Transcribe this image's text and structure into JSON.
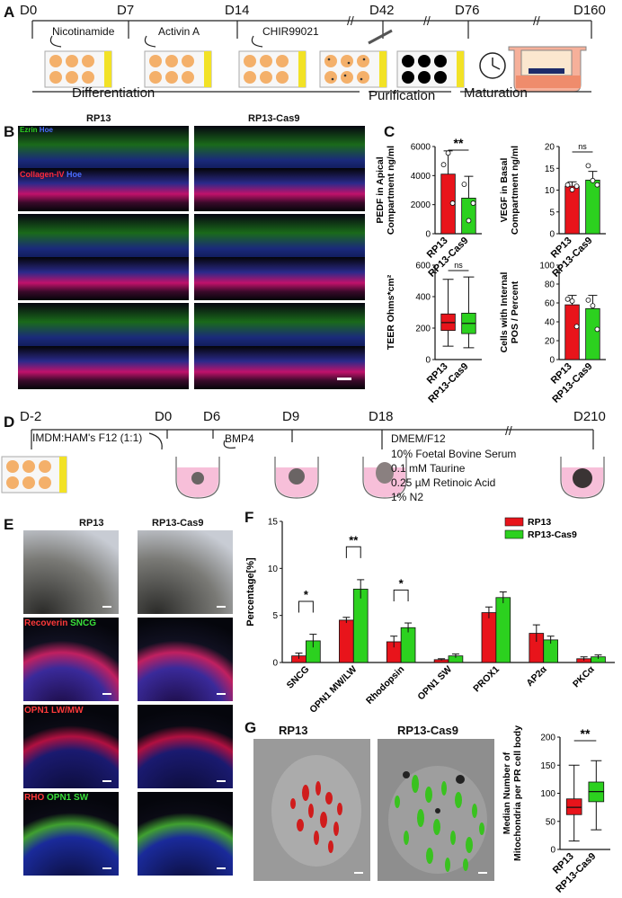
{
  "panelA": {
    "label": "A",
    "days": [
      "D0",
      "D7",
      "D14",
      "D42",
      "D76",
      "D160"
    ],
    "factors": [
      "Nicotinamide",
      "Activin A",
      "CHIR99021"
    ],
    "stages": [
      "Differentiation",
      "Purification",
      "Maturation"
    ]
  },
  "panelB": {
    "label": "B",
    "col1": "RP13",
    "col2": "RP13-Cas9",
    "stain1": {
      "a": "Ezrin",
      "b": "Hoe"
    },
    "stain2": {
      "a": "Collagen-IV",
      "b": "Hoe"
    }
  },
  "panelC": {
    "label": "C"
  },
  "panelD": {
    "label": "D",
    "days": [
      "D-2",
      "D0",
      "D6",
      "D9",
      "D18",
      "D210"
    ],
    "medium1": "IMDM:HAM's F12 (1:1)",
    "factor": "BMP4",
    "medium2": [
      "DMEM/F12",
      "10% Foetal Bovine Serum",
      "0.1 mM Taurine",
      "0.25 µM Retinoic Acid",
      "1% N2"
    ]
  },
  "panelE": {
    "label": "E",
    "col1": "RP13",
    "col2": "RP13-Cas9",
    "stains": [
      {
        "a": "Recoverin",
        "b": "SNCG"
      },
      {
        "a": "OPN1 LW/MW"
      },
      {
        "a": "RHO",
        "b": "OPN1 SW"
      }
    ]
  },
  "panelF": {
    "label": "F"
  },
  "panelG": {
    "label": "G",
    "title1": "RP13",
    "title2": "RP13-Cas9"
  },
  "colors": {
    "rp13": "#e8141b",
    "cas9": "#2cd11f"
  },
  "chart_data": [
    {
      "id": "pedf",
      "type": "bar",
      "ylabel_line1": "PEDF in Apical",
      "ylabel_line2": "Compartment ng/ml",
      "categories": [
        "RP13",
        "RP13-Cas9"
      ],
      "values": [
        4100,
        2450
      ],
      "errors": [
        1600,
        1500
      ],
      "points": [
        [
          4750,
          5550,
          2100
        ],
        [
          3400,
          900,
          2100
        ]
      ],
      "ylim": [
        0,
        6000
      ],
      "ticks": [
        0,
        2000,
        4000,
        6000
      ],
      "sig": "**"
    },
    {
      "id": "vegf",
      "type": "bar",
      "ylabel_line1": "VEGF in Basal",
      "ylabel_line2": "Compartment ng/ml",
      "categories": [
        "RP13",
        "RP13-Cas9"
      ],
      "values": [
        10.9,
        12.3
      ],
      "errors": [
        1.0,
        2.0
      ],
      "points": [
        [
          11.2,
          10.1,
          10.9
        ],
        [
          15.6,
          12.2,
          11.2
        ]
      ],
      "ylim": [
        0,
        20
      ],
      "ticks": [
        0,
        5,
        10,
        15,
        20
      ],
      "sig": "ns"
    },
    {
      "id": "teer",
      "type": "box",
      "ylabel_line1": "TEER Ohms*cm²",
      "categories": [
        "RP13",
        "RP13-Cas9"
      ],
      "boxes": [
        {
          "min": 85,
          "q1": 185,
          "median": 235,
          "q3": 290,
          "max": 510
        },
        {
          "min": 75,
          "q1": 165,
          "median": 230,
          "q3": 295,
          "max": 525
        }
      ],
      "ylim": [
        0,
        600
      ],
      "ticks": [
        0,
        200,
        400,
        600
      ],
      "sig": "ns"
    },
    {
      "id": "pos",
      "type": "bar",
      "ylabel_line1": "Cells with Internal",
      "ylabel_line2": "POS / Percent",
      "categories": [
        "RP13",
        "RP13-Cas9"
      ],
      "values": [
        58,
        54
      ],
      "errors": [
        10,
        14
      ],
      "points": [
        [
          64,
          62,
          35
        ],
        [
          63,
          57,
          32
        ]
      ],
      "ylim": [
        0,
        100
      ],
      "ticks": [
        0,
        20,
        40,
        60,
        80,
        100
      ]
    },
    {
      "id": "percentage",
      "type": "bar",
      "ylabel": "Percentage[%]",
      "legend": [
        "RP13",
        "RP13-Cas9"
      ],
      "categories": [
        "SNCG",
        "OPN1 MW/LW",
        "Rhodopsin",
        "OPN1 SW",
        "PROX1",
        "AP2α",
        "PKCα"
      ],
      "series": [
        {
          "name": "RP13",
          "values": [
            0.7,
            4.5,
            2.2,
            0.3,
            5.3,
            3.1,
            0.4
          ],
          "errors": [
            0.3,
            0.3,
            0.6,
            0.1,
            0.6,
            0.9,
            0.2
          ]
        },
        {
          "name": "RP13-Cas9",
          "values": [
            2.3,
            7.8,
            3.7,
            0.7,
            6.9,
            2.4,
            0.6
          ],
          "errors": [
            0.7,
            1.0,
            0.5,
            0.2,
            0.6,
            0.4,
            0.2
          ]
        }
      ],
      "ylim": [
        0,
        15
      ],
      "ticks": [
        0,
        5,
        10,
        15
      ],
      "sig": [
        {
          "cat": 0,
          "text": "*"
        },
        {
          "cat": 1,
          "text": "**"
        },
        {
          "cat": 2,
          "text": "*"
        }
      ]
    },
    {
      "id": "mito",
      "type": "box",
      "ylabel_line1": "Median Number of",
      "ylabel_line2": "Mitochondria per PR cell body",
      "categories": [
        "RP13",
        "RP13-Cas9"
      ],
      "boxes": [
        {
          "min": 15,
          "q1": 62,
          "median": 75,
          "q3": 90,
          "max": 150
        },
        {
          "min": 35,
          "q1": 85,
          "median": 103,
          "q3": 120,
          "max": 158
        }
      ],
      "ylim": [
        0,
        200
      ],
      "ticks": [
        0,
        50,
        100,
        150,
        200
      ],
      "sig": "**"
    }
  ]
}
